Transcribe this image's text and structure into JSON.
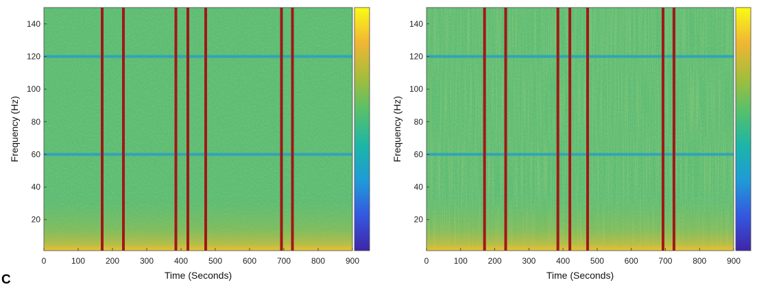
{
  "panel_label": "C",
  "colors": {
    "marker": "#a01818",
    "colormap": [
      "#3e26a8",
      "#3457e0",
      "#1f9ad8",
      "#1bb5a8",
      "#54c06d",
      "#a6bd3a",
      "#f1b633",
      "#f9fb15"
    ],
    "line_band": "#27a0c4"
  },
  "chart_data": [
    {
      "type": "heatmap",
      "title": "",
      "xlabel": "Time (Seconds)",
      "ylabel": "Frequency (Hz)",
      "xlim": [
        0,
        900
      ],
      "ylim": [
        1,
        150
      ],
      "xticks": [
        0,
        100,
        200,
        300,
        400,
        500,
        600,
        700,
        800,
        900
      ],
      "yticks": [
        20,
        40,
        60,
        80,
        100,
        120,
        140
      ],
      "line_noise_bands_hz": [
        60,
        120
      ],
      "event_markers_s": [
        170,
        232,
        385,
        420,
        472,
        693,
        725
      ],
      "colorbar": true
    },
    {
      "type": "heatmap",
      "title": "",
      "xlabel": "Time (Seconds)",
      "ylabel": "Frequency (Hz)",
      "xlim": [
        0,
        900
      ],
      "ylim": [
        1,
        150
      ],
      "xticks": [
        0,
        100,
        200,
        300,
        400,
        500,
        600,
        700,
        800,
        900
      ],
      "yticks": [
        20,
        40,
        60,
        80,
        100,
        120,
        140
      ],
      "line_noise_bands_hz": [
        60,
        120
      ],
      "event_markers_s": [
        170,
        232,
        385,
        420,
        472,
        693,
        725
      ],
      "colorbar": true
    }
  ]
}
